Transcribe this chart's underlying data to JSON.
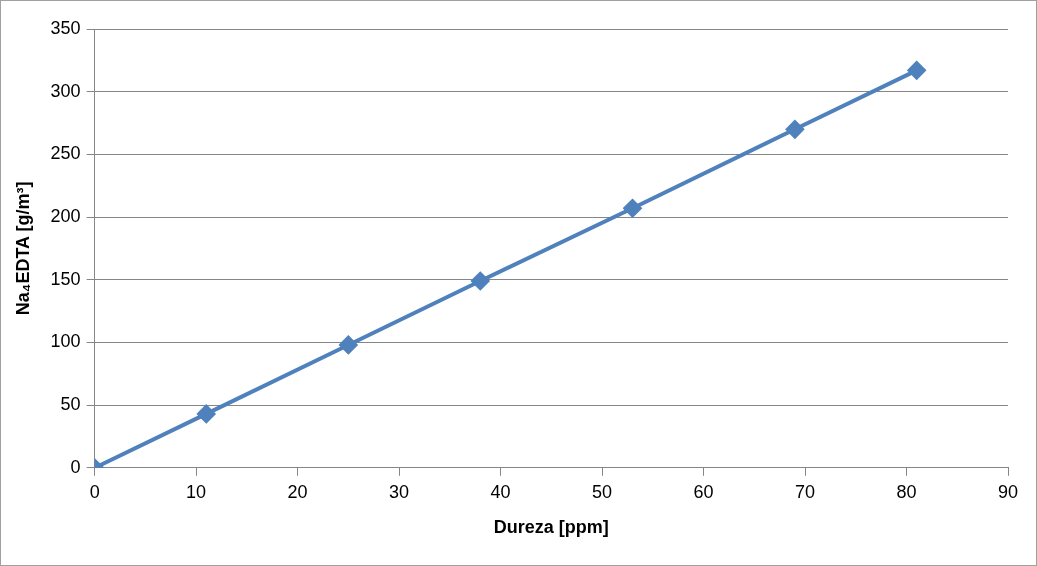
{
  "chart_data": {
    "type": "line",
    "xlabel": "Dureza [ppm]",
    "ylabel": "Na₄EDTA [g/m³]",
    "x": [
      0,
      11,
      25,
      38,
      53,
      69,
      81
    ],
    "series": [
      {
        "color": "#4f81bd",
        "values": [
          0,
          43,
          98,
          149,
          207,
          270,
          317
        ]
      }
    ],
    "xlim": [
      0,
      90
    ],
    "xticks": [
      0,
      10,
      20,
      30,
      40,
      50,
      60,
      70,
      80,
      90
    ],
    "ylim": [
      0,
      350
    ],
    "yticks": [
      0,
      50,
      100,
      150,
      200,
      250,
      300,
      350
    ],
    "grid": "y",
    "legend": false,
    "marker": "diamond",
    "line_style": "solid"
  }
}
